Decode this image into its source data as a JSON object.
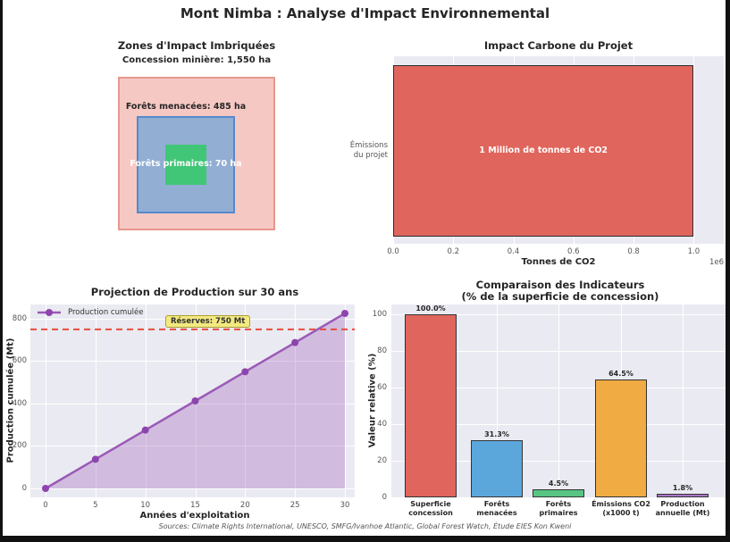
{
  "title": "Mont Nimba : Analyse d'Impact Environnemental",
  "footer": "Sources: Climate Rights International, UNESCO, SMFG/Ivanhoe Atlantic, Global Forest Watch, Étude EIES Kon Kweni",
  "colors": {
    "plot_background": "#eaeaf2",
    "grid": "#ffffff",
    "red": "#e0655c",
    "blue": "#5ba7dc",
    "green": "#58c584",
    "orange": "#f0ab42",
    "purple": "#aa74c6",
    "line_purple": "#9b59b6",
    "reference_red": "#e74c3c"
  },
  "chart_data": [
    {
      "id": "zones",
      "type": "nested-rectangles",
      "title": "Zones d'Impact Imbriquées",
      "zones": [
        {
          "label": "Concession minière: 1,550 ha",
          "area_ha": 1550,
          "fill": "#f6c8c3",
          "border": "#e8978d",
          "text_color": "#262626"
        },
        {
          "label": "Forêts menacées: 485 ha",
          "area_ha": 485,
          "fill": "#93aed3",
          "border": "#5589cc",
          "text_color": "#262626"
        },
        {
          "label": "Forêts primaires: 70 ha",
          "area_ha": 70,
          "fill": "#41c677",
          "border": "#41c677",
          "text_color": "#ffffff"
        }
      ]
    },
    {
      "id": "carbone",
      "type": "barh",
      "title": "Impact Carbone du Projet",
      "categories": [
        "Émissions\ndu projet"
      ],
      "values": [
        1000000
      ],
      "bar_label": "1 Million de tonnes de CO2",
      "xlabel": "Tonnes de CO2",
      "xlim": [
        0,
        1100000
      ],
      "xticks": [
        0,
        200000,
        400000,
        600000,
        800000,
        1000000
      ],
      "xtick_labels": [
        "0.0",
        "0.2",
        "0.4",
        "0.6",
        "0.8",
        "1.0"
      ],
      "offset_label": "1e6",
      "bar_color": "#e0655c"
    },
    {
      "id": "production",
      "type": "line",
      "title": "Projection de Production sur 30 ans",
      "series_name": "Production cumulée",
      "x": [
        0,
        5,
        10,
        15,
        20,
        25,
        30
      ],
      "y": [
        0,
        137.5,
        275,
        412.5,
        550,
        687.5,
        825
      ],
      "xlabel": "Années d'exploitation",
      "ylabel": "Production cumulée (Mt)",
      "xticks": [
        0,
        5,
        10,
        15,
        20,
        25,
        30
      ],
      "yticks": [
        0,
        200,
        400,
        600,
        800
      ],
      "xlim": [
        -1.5,
        31
      ],
      "ylim": [
        -43,
        867
      ],
      "grid": true,
      "legend_position": "upper-left",
      "reference_line": {
        "value": 750,
        "label": "Réserves: 750 Mt",
        "color": "#e74c3c"
      },
      "line_color": "#9b59b6",
      "marker_color": "#8e44ad",
      "fill_color": "rgba(155,89,182,0.32)"
    },
    {
      "id": "comparaison",
      "type": "bar",
      "title": "Comparaison des Indicateurs",
      "subtitle": "(% de la superficie de concession)",
      "categories": [
        "Superficie\nconcession",
        "Forêts\nmenacées",
        "Forêts\nprimaires",
        "Émissions CO2\n(x1000 t)",
        "Production\nannuelle (Mt)"
      ],
      "values": [
        100.0,
        31.3,
        4.5,
        64.5,
        1.8
      ],
      "value_labels": [
        "100.0%",
        "31.3%",
        "4.5%",
        "64.5%",
        "1.8%"
      ],
      "bar_colors": [
        "#e0655c",
        "#5ba7dc",
        "#58c584",
        "#f0ab42",
        "#aa74c6"
      ],
      "ylabel": "Valeur relative (%)",
      "yticks": [
        0,
        20,
        40,
        60,
        80,
        100
      ],
      "ylim": [
        0,
        105
      ],
      "grid": true
    }
  ]
}
